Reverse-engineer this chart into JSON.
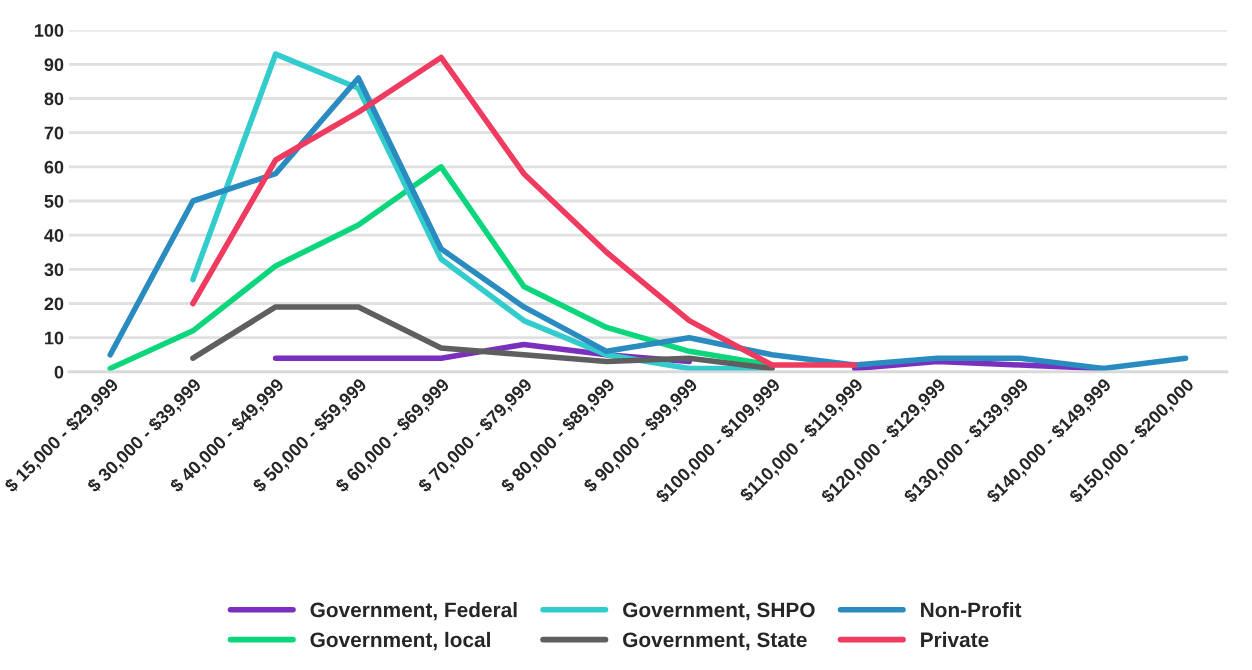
{
  "chart_data": {
    "type": "line",
    "categories": [
      "$ 15,000 - $29,999",
      "$ 30,000 - $39,999",
      "$ 40,000 - $49,999",
      "$ 50,000 - $59,999",
      "$ 60,000 - $69,999",
      "$ 70,000 - $79,999",
      "$ 80,000 - $89,999",
      "$ 90,000 - $99,999",
      "$100,000 - $109,999",
      "$110,000 - $119,999",
      "$120,000 - $129,999",
      "$130,000 - $139,999",
      "$140,000 - $149,999",
      "$150,000 - $200,000"
    ],
    "series": [
      {
        "name": "Government, Federal",
        "color": "#7b2fbe",
        "values": [
          null,
          null,
          4,
          4,
          4,
          8,
          5,
          3,
          null,
          1,
          3,
          2,
          1,
          null
        ]
      },
      {
        "name": "Government, local",
        "color": "#0bd67c",
        "values": [
          1,
          12,
          31,
          43,
          60,
          25,
          13,
          6,
          2,
          null,
          null,
          null,
          null,
          null
        ]
      },
      {
        "name": "Government, SHPO",
        "color": "#33cccc",
        "values": [
          null,
          27,
          93,
          83,
          33,
          15,
          5,
          1,
          1,
          null,
          null,
          null,
          null,
          null
        ]
      },
      {
        "name": "Government, State",
        "color": "#5f5f5f",
        "values": [
          null,
          4,
          19,
          19,
          7,
          5,
          3,
          4,
          1,
          null,
          null,
          null,
          null,
          null
        ]
      },
      {
        "name": "Non-Profit",
        "color": "#2a8bc0",
        "values": [
          5,
          50,
          58,
          86,
          36,
          19,
          6,
          10,
          5,
          2,
          4,
          4,
          1,
          4
        ]
      },
      {
        "name": "Private",
        "color": "#ef3b5f",
        "values": [
          null,
          20,
          62,
          76,
          92,
          58,
          35,
          15,
          2,
          2,
          null,
          null,
          null,
          null
        ]
      }
    ],
    "ylim": [
      0,
      100
    ],
    "yticks": [
      0,
      10,
      20,
      30,
      40,
      50,
      60,
      70,
      80,
      90,
      100
    ],
    "grid": "y",
    "legend": "bottom",
    "marker": "none",
    "line_style": "solid"
  }
}
